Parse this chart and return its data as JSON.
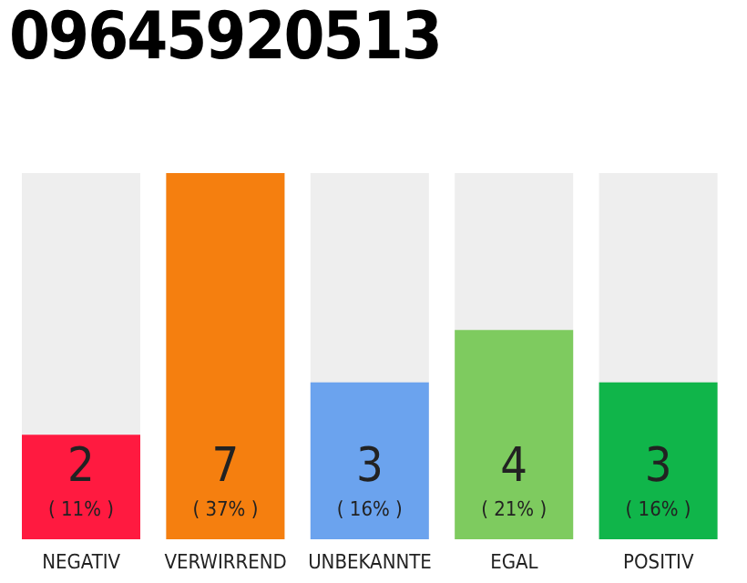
{
  "chart_data": {
    "type": "bar",
    "title": "09645920513",
    "categories": [
      "NEGATIV",
      "VERWIRREND",
      "UNBEKANNTE",
      "EGAL",
      "POSITIV"
    ],
    "values": [
      2,
      7,
      3,
      4,
      3
    ],
    "colors": [
      "#ff1a40",
      "#f57f0f",
      "#6ba3ee",
      "#7ecb5f",
      "#10b54a"
    ],
    "data_labels": true,
    "annotations": [
      "( 11% )",
      "( 37% )",
      "( 16% )",
      "( 21% )",
      "( 16% )"
    ],
    "grid": false,
    "legend": false
  }
}
